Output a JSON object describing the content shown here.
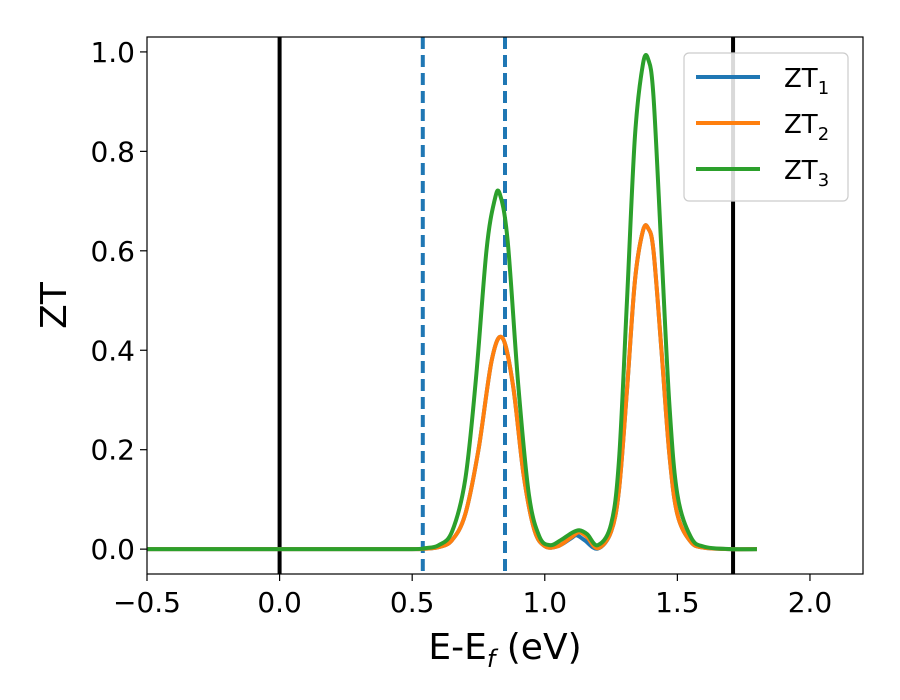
{
  "chart_data": {
    "type": "line",
    "xlabel": "E-E",
    "xlabel_sub": "f",
    "xlabel_unit": " (eV)",
    "ylabel": "ZT",
    "xlim": [
      -0.5,
      2.2
    ],
    "ylim": [
      -0.05,
      1.03
    ],
    "x_ticks": [
      -0.5,
      0.0,
      0.5,
      1.0,
      1.5,
      2.0
    ],
    "x_tick_labels": [
      "−0.5",
      "0.0",
      "0.5",
      "1.0",
      "1.5",
      "2.0"
    ],
    "y_ticks": [
      0.0,
      0.2,
      0.4,
      0.6,
      0.8,
      1.0
    ],
    "y_tick_labels": [
      "0.0",
      "0.2",
      "0.4",
      "0.6",
      "0.8",
      "1.0"
    ],
    "grid": false,
    "legend_position": "top-right",
    "vlines": [
      {
        "x": 0.0,
        "color": "#000000",
        "style": "solid"
      },
      {
        "x": 1.71,
        "color": "#000000",
        "style": "solid"
      },
      {
        "x": 0.54,
        "color": "#1f77b4",
        "style": "dashed"
      },
      {
        "x": 0.85,
        "color": "#1f77b4",
        "style": "dashed"
      }
    ],
    "series": [
      {
        "name": "ZT",
        "sub": "1",
        "color": "#1f77b4",
        "x": [
          -0.5,
          0.0,
          0.3,
          0.5,
          0.55,
          0.6,
          0.65,
          0.7,
          0.75,
          0.8,
          0.84,
          0.88,
          0.92,
          0.96,
          1.0,
          1.05,
          1.1,
          1.12,
          1.15,
          1.2,
          1.25,
          1.28,
          1.31,
          1.34,
          1.37,
          1.39,
          1.41,
          1.44,
          1.47,
          1.5,
          1.55,
          1.6,
          1.7,
          1.8
        ],
        "y": [
          0.0,
          0.0,
          0.0,
          0.0,
          0.001,
          0.004,
          0.018,
          0.07,
          0.2,
          0.38,
          0.425,
          0.33,
          0.15,
          0.04,
          0.006,
          0.006,
          0.022,
          0.028,
          0.018,
          0.001,
          0.035,
          0.12,
          0.32,
          0.54,
          0.64,
          0.645,
          0.6,
          0.4,
          0.19,
          0.07,
          0.015,
          0.003,
          0.0,
          0.0
        ]
      },
      {
        "name": "ZT",
        "sub": "2",
        "color": "#ff7f0e",
        "x": [
          -0.5,
          0.0,
          0.3,
          0.5,
          0.55,
          0.6,
          0.65,
          0.7,
          0.75,
          0.8,
          0.84,
          0.88,
          0.92,
          0.96,
          1.0,
          1.05,
          1.1,
          1.13,
          1.16,
          1.2,
          1.25,
          1.28,
          1.31,
          1.34,
          1.37,
          1.39,
          1.41,
          1.44,
          1.47,
          1.5,
          1.55,
          1.6,
          1.7,
          1.8
        ],
        "y": [
          0.0,
          0.0,
          0.0,
          0.0,
          0.001,
          0.004,
          0.018,
          0.07,
          0.2,
          0.38,
          0.425,
          0.33,
          0.15,
          0.04,
          0.006,
          0.006,
          0.024,
          0.034,
          0.024,
          0.002,
          0.035,
          0.12,
          0.32,
          0.54,
          0.64,
          0.645,
          0.6,
          0.4,
          0.19,
          0.07,
          0.015,
          0.003,
          0.0,
          0.0
        ]
      },
      {
        "name": "ZT",
        "sub": "3",
        "color": "#2ca02c",
        "x": [
          -0.5,
          0.0,
          0.3,
          0.5,
          0.55,
          0.6,
          0.65,
          0.7,
          0.74,
          0.78,
          0.81,
          0.83,
          0.86,
          0.9,
          0.94,
          0.98,
          1.02,
          1.06,
          1.1,
          1.13,
          1.16,
          1.2,
          1.25,
          1.28,
          1.31,
          1.34,
          1.37,
          1.39,
          1.41,
          1.44,
          1.47,
          1.5,
          1.55,
          1.6,
          1.7,
          1.8
        ],
        "y": [
          0.0,
          0.0,
          0.0,
          0.0,
          0.002,
          0.008,
          0.035,
          0.14,
          0.34,
          0.6,
          0.7,
          0.715,
          0.62,
          0.33,
          0.11,
          0.025,
          0.008,
          0.018,
          0.032,
          0.038,
          0.03,
          0.008,
          0.05,
          0.18,
          0.5,
          0.83,
          0.975,
          0.985,
          0.91,
          0.6,
          0.29,
          0.11,
          0.025,
          0.005,
          0.0,
          0.0
        ]
      }
    ]
  }
}
